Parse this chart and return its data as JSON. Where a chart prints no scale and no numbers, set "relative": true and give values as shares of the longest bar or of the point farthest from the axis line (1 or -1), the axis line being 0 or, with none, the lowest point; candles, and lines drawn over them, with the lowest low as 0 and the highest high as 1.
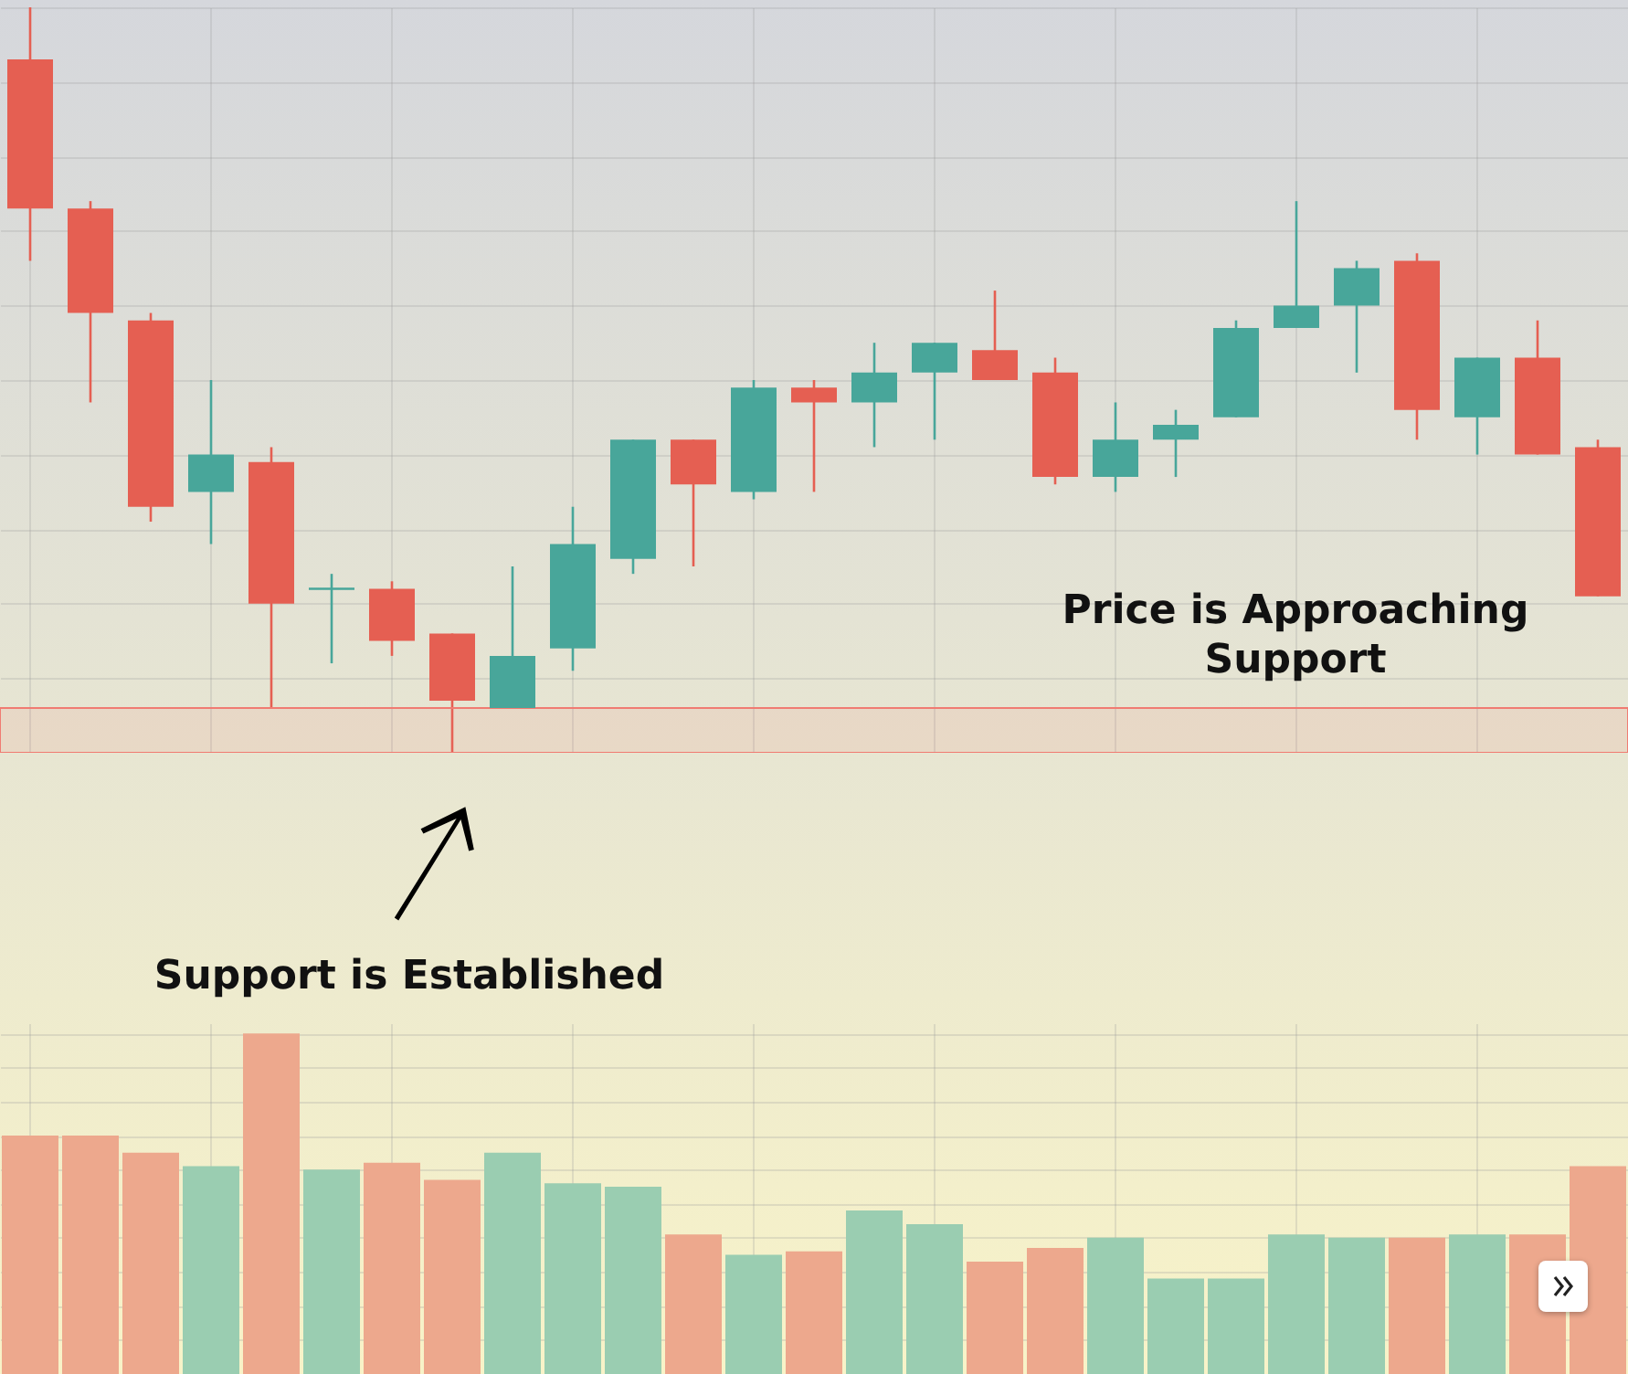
{
  "chart_data": [
    {
      "type": "candlestick",
      "relative": true,
      "grid": true,
      "categories": [
        null,
        null,
        null,
        null,
        null,
        null,
        null,
        null,
        null,
        null,
        null,
        null,
        null,
        null,
        null,
        null,
        null,
        null,
        null,
        null,
        null,
        null,
        null,
        null,
        null,
        null,
        null
      ],
      "ohlc": [
        [
          0.93,
          1,
          0.66,
          0.73
        ],
        [
          0.73,
          0.74,
          0.47,
          0.59
        ],
        [
          0.58,
          0.59,
          0.31,
          0.33
        ],
        [
          0.35,
          0.5,
          0.28,
          0.4
        ],
        [
          0.39,
          0.41,
          0.06,
          0.2
        ],
        [
          0.22,
          0.24,
          0.12,
          0.22
        ],
        [
          0.22,
          0.23,
          0.13,
          0.15
        ],
        [
          0.16,
          0.16,
          0,
          0.07
        ],
        [
          0.06,
          0.25,
          0.06,
          0.13
        ],
        [
          0.14,
          0.33,
          0.11,
          0.28
        ],
        [
          0.26,
          0.42,
          0.24,
          0.42
        ],
        [
          0.42,
          0.42,
          0.25,
          0.36
        ],
        [
          0.35,
          0.5,
          0.34,
          0.49
        ],
        [
          0.49,
          0.5,
          0.35,
          0.47
        ],
        [
          0.47,
          0.55,
          0.41,
          0.51
        ],
        [
          0.51,
          0.55,
          0.42,
          0.55
        ],
        [
          0.54,
          0.62,
          0.5,
          0.5
        ],
        [
          0.51,
          0.53,
          0.36,
          0.37
        ],
        [
          0.37,
          0.47,
          0.35,
          0.42
        ],
        [
          0.42,
          0.46,
          0.37,
          0.44
        ],
        [
          0.45,
          0.58,
          0.45,
          0.57
        ],
        [
          0.57,
          0.74,
          0.57,
          0.6
        ],
        [
          0.6,
          0.66,
          0.51,
          0.65
        ],
        [
          0.66,
          0.67,
          0.42,
          0.46
        ],
        [
          0.45,
          0.53,
          0.4,
          0.53
        ],
        [
          0.53,
          0.58,
          0.4,
          0.4
        ],
        [
          0.41,
          0.42,
          0.21,
          0.21
        ]
      ],
      "colors": [
        "#e55f52",
        "#e55f52",
        "#e55f52",
        "#48a69a",
        "#e55f52",
        "#48a69a",
        "#e55f52",
        "#e55f52",
        "#48a69a",
        "#48a69a",
        "#48a69a",
        "#e55f52",
        "#48a69a",
        "#e55f52",
        "#48a69a",
        "#48a69a",
        "#e55f52",
        "#e55f52",
        "#48a69a",
        "#48a69a",
        "#48a69a",
        "#48a69a",
        "#48a69a",
        "#e55f52",
        "#48a69a",
        "#e55f52",
        "#e55f52"
      ],
      "bands": [
        {
          "axis": "y",
          "from": 0,
          "to": 0.06,
          "color": "#f07b72"
        }
      ],
      "annotations": [
        "Support is Established",
        "Price is Approaching Support"
      ]
    },
    {
      "type": "bar",
      "relative": true,
      "grid": true,
      "categories": [
        null,
        null,
        null,
        null,
        null,
        null,
        null,
        null,
        null,
        null,
        null,
        null,
        null,
        null,
        null,
        null,
        null,
        null,
        null,
        null,
        null,
        null,
        null,
        null,
        null,
        null,
        null
      ],
      "values": [
        0.7,
        0.7,
        0.65,
        0.61,
        1,
        0.6,
        0.62,
        0.57,
        0.65,
        0.56,
        0.55,
        0.41,
        0.35,
        0.36,
        0.48,
        0.44,
        0.33,
        0.37,
        0.4,
        0.28,
        0.28,
        0.41,
        0.4,
        0.4,
        0.41,
        0.41,
        0.61
      ],
      "colors": [
        "#eda88d",
        "#eda88d",
        "#eda88d",
        "#9acdb1",
        "#eda88d",
        "#9acdb1",
        "#eda88d",
        "#eda88d",
        "#9acdb1",
        "#9acdb1",
        "#9acdb1",
        "#eda88d",
        "#9acdb1",
        "#eda88d",
        "#9acdb1",
        "#9acdb1",
        "#eda88d",
        "#eda88d",
        "#9acdb1",
        "#9acdb1",
        "#9acdb1",
        "#9acdb1",
        "#9acdb1",
        "#eda88d",
        "#9acdb1",
        "#eda88d",
        "#eda88d"
      ]
    }
  ]
}
